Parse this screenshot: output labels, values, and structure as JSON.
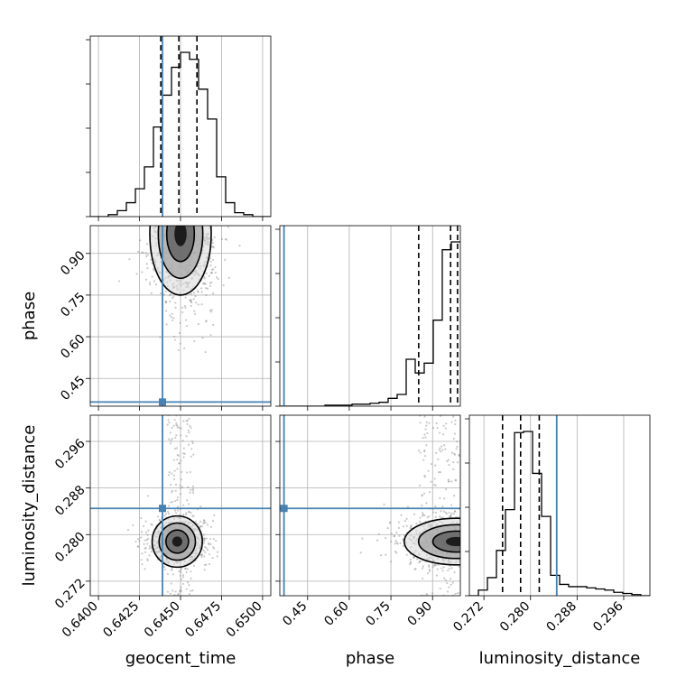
{
  "colors": {
    "truth": "#4682b4",
    "hist": "#000000",
    "grid": "#b0b0b0",
    "scatter": "#8a8a8a",
    "density_levels": [
      "#d9d9d9",
      "#a6a6a6",
      "#5a5a5a",
      "#000000"
    ]
  },
  "chart_data": {
    "type": "corner",
    "parameters": [
      "geocent_time",
      "phase",
      "luminosity_distance"
    ],
    "ranges": {
      "geocent_time": [
        0.6395,
        0.6505
      ],
      "phase": [
        0.35,
        1.0
      ],
      "luminosity_distance": [
        0.2695,
        0.3005
      ]
    },
    "truths": {
      "geocent_time": 0.6439,
      "phase": 0.365,
      "luminosity_distance": 0.2845
    },
    "ticks": {
      "geocent_time": {
        "values": [
          0.64,
          0.6425,
          0.645,
          0.6475,
          0.65
        ],
        "labels": [
          "0.6400",
          "0.6425",
          "0.6450",
          "0.6475",
          "0.6500"
        ]
      },
      "phase": {
        "values": [
          0.45,
          0.6,
          0.75,
          0.9
        ],
        "labels": [
          "0.45",
          "0.60",
          "0.75",
          "0.90"
        ]
      },
      "luminosity_distance": {
        "values": [
          0.272,
          0.28,
          0.288,
          0.296
        ],
        "labels": [
          "0.272",
          "0.280",
          "0.288",
          "0.296"
        ]
      }
    },
    "quantiles": {
      "geocent_time": [
        0.6438,
        0.6449,
        0.646
      ],
      "phase": [
        0.85,
        0.965,
        0.99
      ],
      "luminosity_distance": [
        0.2752,
        0.2783,
        0.2815
      ]
    },
    "histograms": {
      "geocent_time": {
        "edges": [
          0.6395,
          0.64005,
          0.6406,
          0.64115,
          0.6417,
          0.64225,
          0.6428,
          0.64335,
          0.6439,
          0.64445,
          0.645,
          0.64555,
          0.6461,
          0.64665,
          0.6472,
          0.64775,
          0.6483,
          0.64885,
          0.6494,
          0.64995,
          0.6505
        ],
        "counts": [
          0,
          0,
          2,
          6,
          14,
          28,
          50,
          90,
          122,
          150,
          165,
          158,
          128,
          98,
          40,
          14,
          4,
          2,
          0,
          0
        ]
      },
      "phase": {
        "edges": [
          0.35,
          0.3825,
          0.415,
          0.4475,
          0.48,
          0.5125,
          0.545,
          0.5775,
          0.61,
          0.6425,
          0.675,
          0.7075,
          0.74,
          0.7725,
          0.805,
          0.8375,
          0.87,
          0.9025,
          0.935,
          0.9675,
          1.0
        ],
        "counts": [
          0,
          0,
          0,
          0,
          0,
          1,
          1,
          1,
          2,
          2,
          3,
          4,
          8,
          12,
          48,
          34,
          44,
          88,
          160,
          168
        ]
      },
      "luminosity_distance": {
        "edges": [
          0.2695,
          0.27105,
          0.2726,
          0.27415,
          0.2757,
          0.27725,
          0.2788,
          0.28035,
          0.2819,
          0.28345,
          0.285,
          0.28655,
          0.2881,
          0.28965,
          0.2912,
          0.29275,
          0.2943,
          0.29585,
          0.2974,
          0.29895,
          0.3005
        ],
        "counts": [
          0,
          5,
          16,
          40,
          76,
          144,
          145,
          108,
          70,
          18,
          10,
          8,
          8,
          7,
          6,
          5,
          3,
          2,
          1,
          0
        ]
      }
    },
    "pairs": [
      {
        "x": "geocent_time",
        "y": "phase",
        "peak": [
          0.645,
          0.97
        ],
        "sigma": [
          0.0011,
          0.11
        ],
        "tail_x": [
          0.644,
          0.647
        ]
      },
      {
        "x": "geocent_time",
        "y": "luminosity_distance",
        "peak": [
          0.6448,
          0.2788
        ],
        "sigma": [
          0.0009,
          0.0022
        ],
        "tail_x": [
          0.6442,
          0.6458
        ]
      },
      {
        "x": "phase",
        "y": "luminosity_distance",
        "peak": [
          0.985,
          0.2788
        ],
        "sigma": [
          0.11,
          0.002
        ],
        "tail_x": [
          0.85,
          1.0
        ]
      }
    ]
  }
}
